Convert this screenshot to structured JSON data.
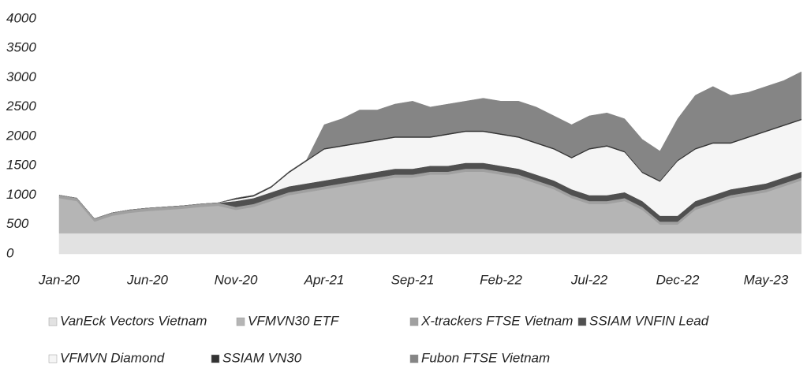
{
  "chart_data": {
    "type": "stacked_area",
    "categories": [
      "Jan-20",
      null,
      null,
      null,
      null,
      "Jun-20",
      null,
      null,
      null,
      null,
      "Nov-20",
      null,
      null,
      null,
      null,
      "Apr-21",
      null,
      null,
      null,
      null,
      "Sep-21",
      null,
      null,
      null,
      null,
      "Feb-22",
      null,
      null,
      null,
      null,
      "Jul-22",
      null,
      null,
      null,
      null,
      "Dec-22",
      null,
      null,
      null,
      null,
      "May-23",
      null,
      null
    ],
    "ylim": [
      0,
      4000
    ],
    "yticks": [
      0,
      500,
      1000,
      1500,
      2000,
      2500,
      3000,
      3500,
      4000
    ],
    "grid": false,
    "series": [
      {
        "name": "VanEck Vectors Vietnam",
        "color": "#e2e2e2",
        "values": [
          350,
          350,
          350,
          350,
          350,
          350,
          350,
          350,
          350,
          350,
          350,
          350,
          350,
          350,
          350,
          350,
          350,
          350,
          350,
          350,
          350,
          350,
          350,
          350,
          350,
          350,
          350,
          350,
          350,
          350,
          350,
          350,
          350,
          350,
          350,
          350,
          350,
          350,
          350,
          350,
          350,
          350,
          350
        ]
      },
      {
        "name": "VFMVN30 ETF",
        "color": "#b5b5b5",
        "values": [
          600,
          550,
          200,
          300,
          350,
          380,
          400,
          420,
          450,
          470,
          400,
          450,
          550,
          650,
          700,
          750,
          800,
          850,
          900,
          950,
          950,
          1000,
          1000,
          1050,
          1050,
          1000,
          950,
          850,
          750,
          600,
          500,
          500,
          550,
          400,
          150,
          150,
          400,
          500,
          600,
          650,
          700,
          800,
          900
        ]
      },
      {
        "name": "X-trackers FTSE Vietnam",
        "color": "#a0a0a0",
        "values": [
          50,
          50,
          50,
          50,
          50,
          50,
          50,
          50,
          50,
          50,
          50,
          50,
          50,
          50,
          50,
          50,
          50,
          50,
          50,
          50,
          50,
          50,
          50,
          50,
          50,
          50,
          50,
          50,
          50,
          50,
          50,
          50,
          50,
          50,
          50,
          50,
          50,
          50,
          50,
          50,
          50,
          50,
          50
        ]
      },
      {
        "name": "SSIAM VNFIN Lead",
        "color": "#505050",
        "values": [
          0,
          0,
          0,
          0,
          0,
          0,
          0,
          0,
          0,
          0,
          100,
          100,
          100,
          100,
          100,
          100,
          100,
          100,
          100,
          100,
          100,
          100,
          100,
          100,
          100,
          100,
          100,
          100,
          100,
          100,
          100,
          100,
          100,
          100,
          100,
          100,
          100,
          100,
          100,
          100,
          100,
          100,
          100
        ]
      },
      {
        "name": "VFMVN Diamond",
        "color": "#f5f5f5",
        "values": [
          0,
          0,
          0,
          0,
          0,
          0,
          0,
          0,
          0,
          0,
          30,
          30,
          80,
          230,
          380,
          530,
          530,
          530,
          530,
          530,
          530,
          480,
          530,
          530,
          530,
          530,
          530,
          530,
          530,
          530,
          780,
          830,
          680,
          480,
          580,
          930,
          880,
          880,
          780,
          830,
          880,
          880,
          880
        ]
      },
      {
        "name": "SSIAM VN30",
        "color": "#333333",
        "values": [
          0,
          0,
          0,
          0,
          0,
          0,
          0,
          0,
          0,
          0,
          20,
          20,
          20,
          20,
          20,
          20,
          20,
          20,
          20,
          20,
          20,
          20,
          20,
          20,
          20,
          20,
          20,
          20,
          20,
          20,
          20,
          20,
          20,
          20,
          20,
          20,
          20,
          20,
          20,
          20,
          20,
          20,
          20
        ]
      },
      {
        "name": "Fubon FTSE Vietnam",
        "color": "#858585",
        "values": [
          0,
          0,
          0,
          0,
          0,
          0,
          0,
          0,
          0,
          0,
          0,
          0,
          0,
          0,
          0,
          400,
          450,
          550,
          500,
          550,
          600,
          500,
          500,
          500,
          550,
          550,
          600,
          600,
          550,
          550,
          550,
          550,
          550,
          550,
          500,
          700,
          900,
          950,
          800,
          750,
          750,
          750,
          800
        ]
      }
    ]
  }
}
